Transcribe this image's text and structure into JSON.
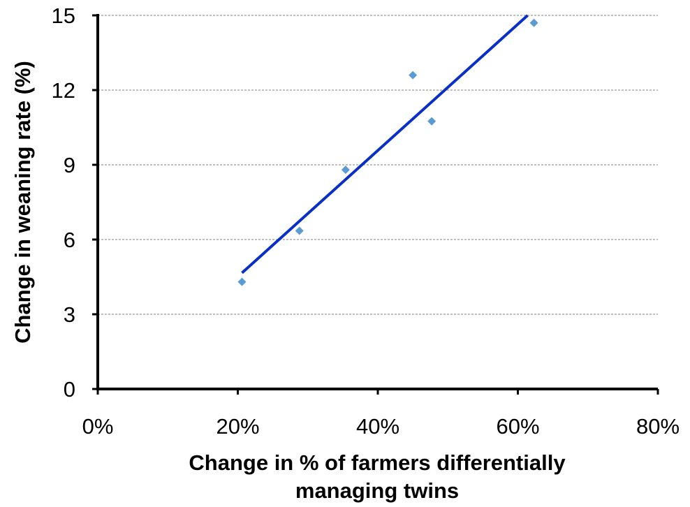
{
  "chart_data": {
    "type": "scatter",
    "title": "",
    "xlabel": [
      "Change in % of farmers differentially",
      "managing twins"
    ],
    "ylabel": "Change in weaning rate (%)",
    "xlim": [
      0,
      80
    ],
    "ylim": [
      0,
      15
    ],
    "x_ticks": [
      0,
      20,
      40,
      60,
      80
    ],
    "x_tick_labels": [
      "0%",
      "20%",
      "40%",
      "60%",
      "80%"
    ],
    "y_ticks": [
      0,
      3,
      6,
      9,
      12,
      15
    ],
    "y_tick_labels": [
      "0",
      "3",
      "6",
      "9",
      "12",
      "15"
    ],
    "grid": "horizontal",
    "legend": "none",
    "series": [
      {
        "marker": "diamond",
        "color": "#5B9BD5",
        "x": [
          20.6,
          28.8,
          35.4,
          45.0,
          47.7,
          62.3
        ],
        "y": [
          4.3,
          6.35,
          8.8,
          12.6,
          10.75,
          14.7
        ]
      }
    ],
    "trendline": {
      "type": "linear",
      "color": "#0A2FC8",
      "x": [
        20.6,
        61.4
      ],
      "y": [
        4.66,
        15.0
      ]
    }
  }
}
